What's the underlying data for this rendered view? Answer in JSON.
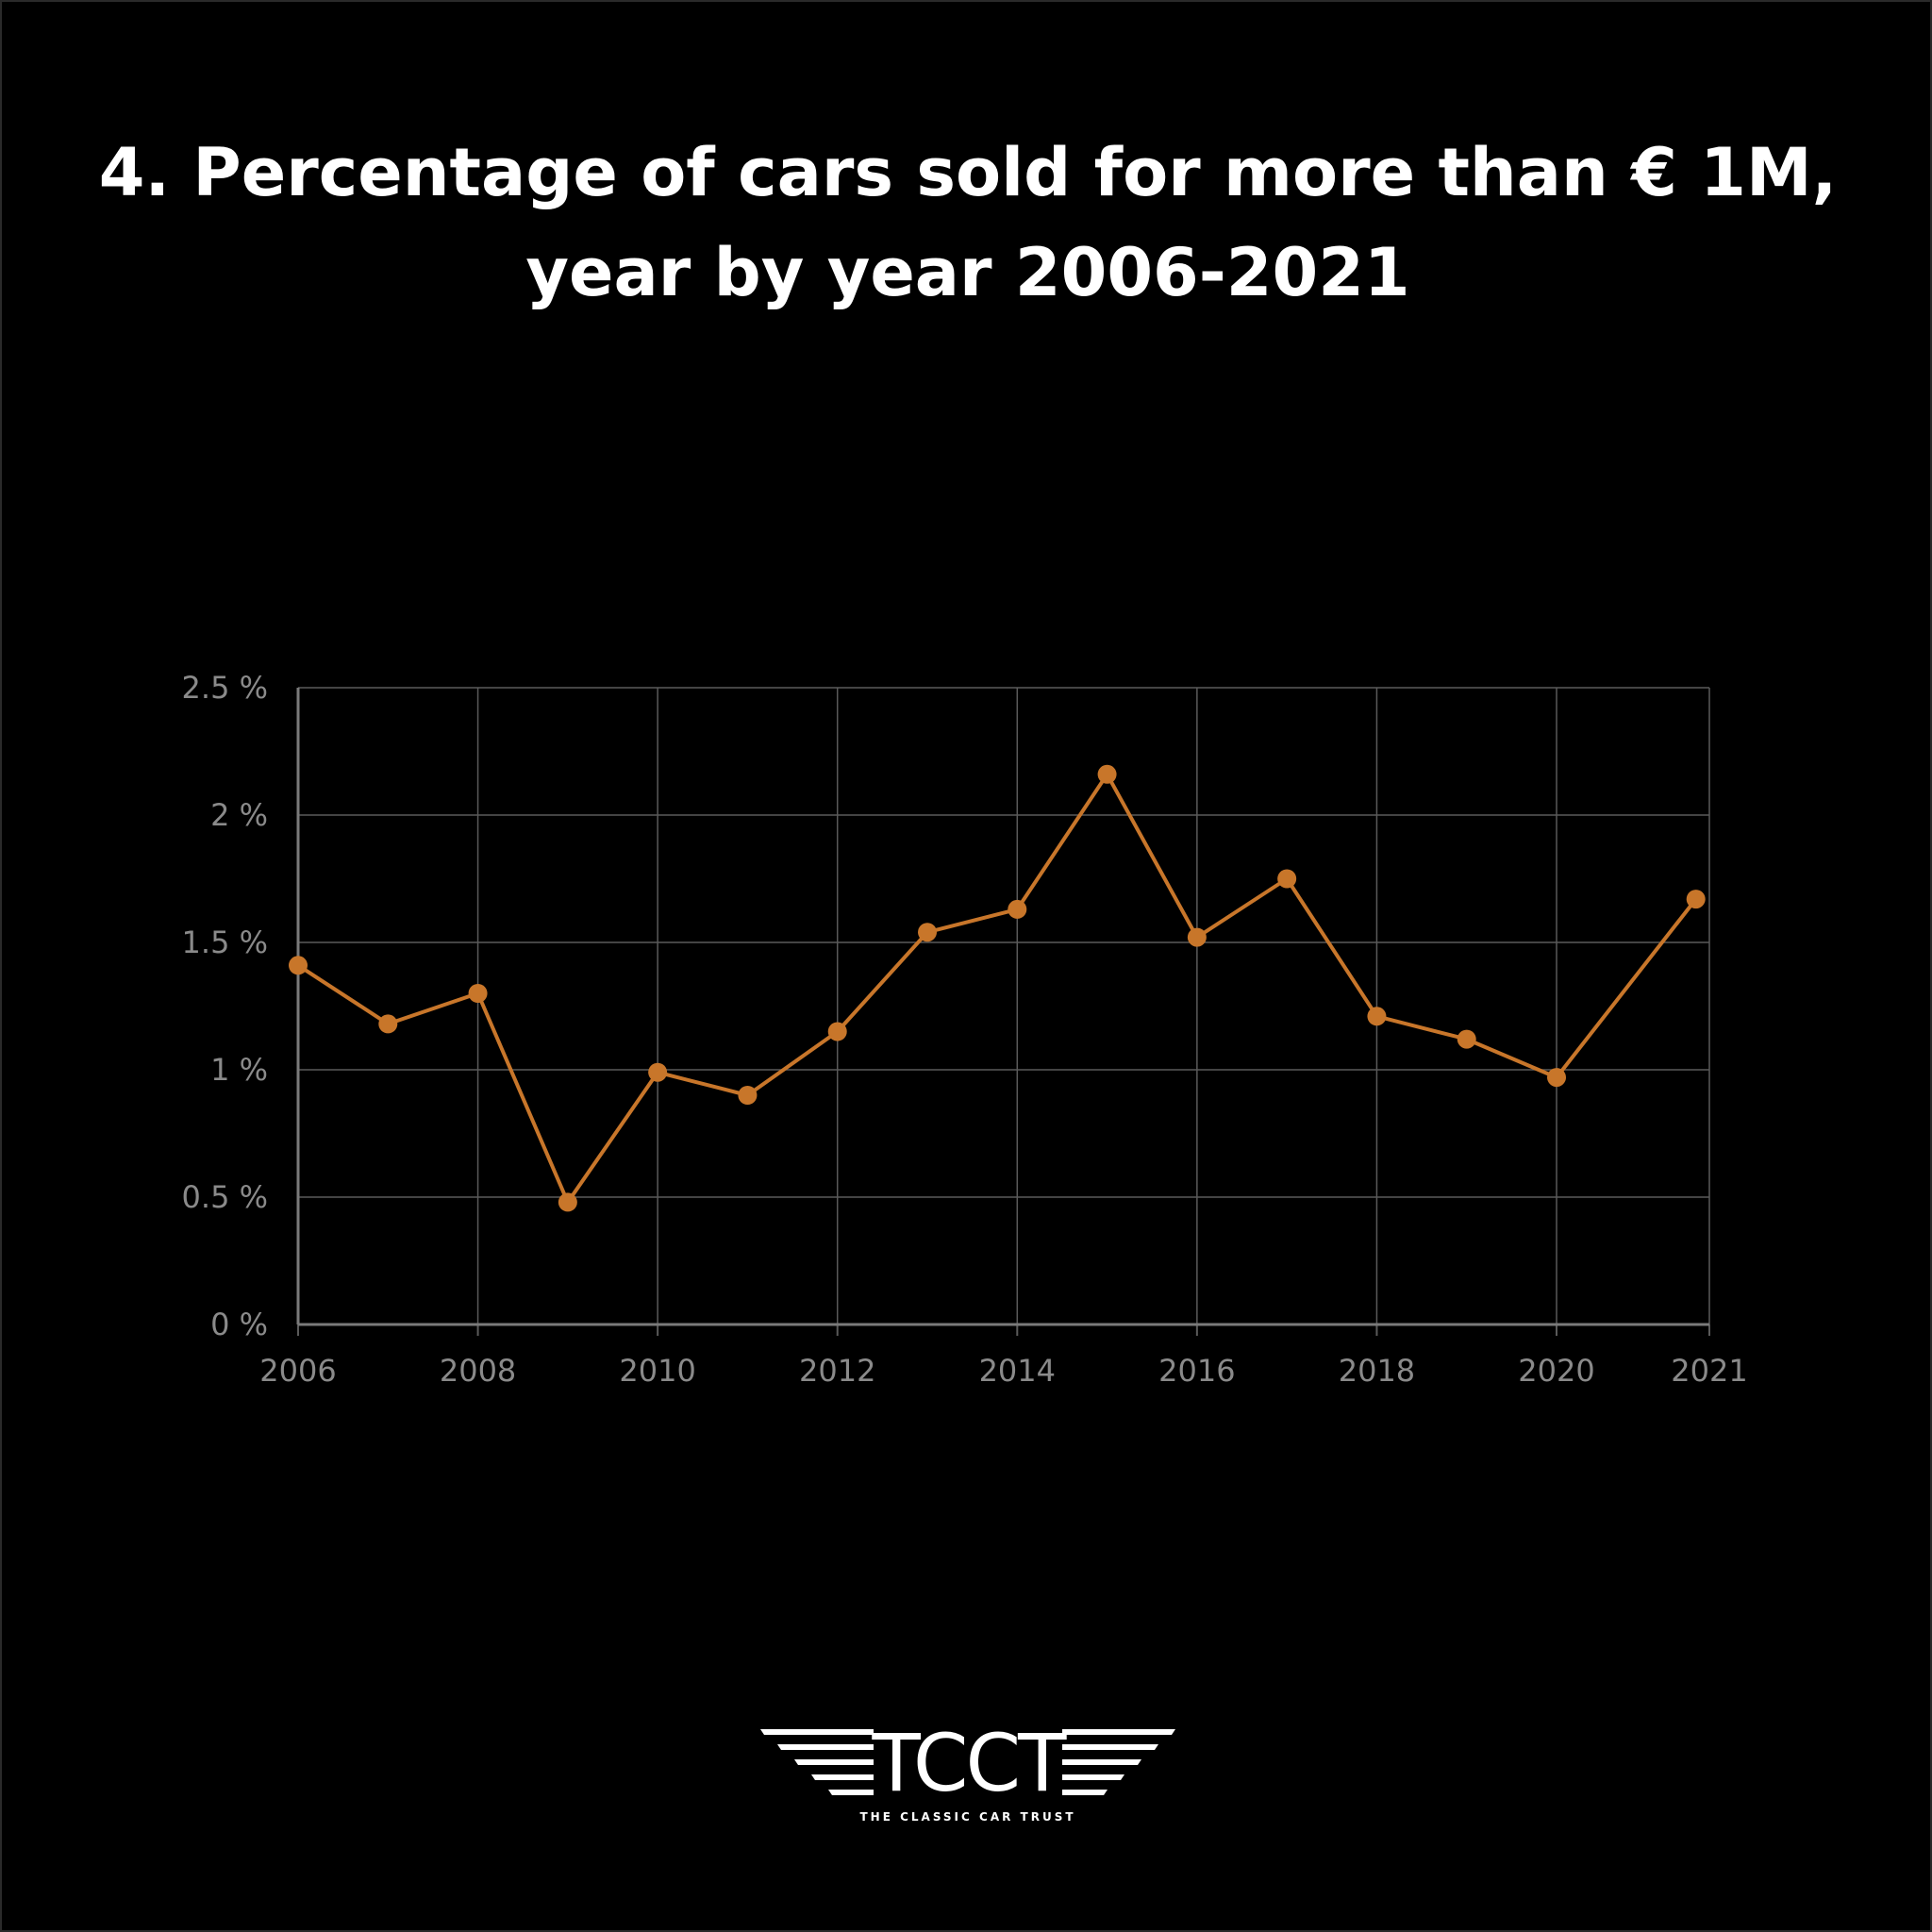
{
  "title": {
    "line1": "4. Percentage of cars sold for more than € 1M,",
    "line2": "year by year 2006-2021"
  },
  "chart_data": {
    "type": "line",
    "title": "4. Percentage of cars sold for more than € 1M, year by year 2006-2021",
    "xlabel": "",
    "ylabel": "",
    "x": [
      2006,
      2007,
      2008,
      2009,
      2010,
      2011,
      2012,
      2013,
      2014,
      2015,
      2016,
      2017,
      2018,
      2019,
      2020,
      2021
    ],
    "series": [
      {
        "name": "Percentage of cars sold for more than € 1M",
        "values": [
          1.41,
          1.18,
          1.3,
          0.48,
          0.99,
          0.9,
          1.15,
          1.54,
          1.63,
          2.16,
          1.52,
          1.75,
          1.21,
          1.12,
          0.97,
          1.67
        ],
        "color": "#c8762a"
      }
    ],
    "xlim": [
      2006,
      2021.7
    ],
    "ylim": [
      0,
      2.5
    ],
    "x_ticks": [
      2006,
      2008,
      2010,
      2012,
      2014,
      2016,
      2018,
      2020,
      2021
    ],
    "x_tick_labels": [
      "2006",
      "2008",
      "2010",
      "2012",
      "2014",
      "2016",
      "2018",
      "2020",
      "2021"
    ],
    "y_ticks": [
      0,
      0.5,
      1,
      1.5,
      2,
      2.5
    ],
    "y_tick_labels": [
      "0 %",
      "0.5 %",
      "1 %",
      "1.5 %",
      "2 %",
      "2.5 %"
    ],
    "grid": true,
    "legend": "none"
  },
  "logo": {
    "mark": "TCCT",
    "tagline": "THE CLASSIC CAR TRUST"
  },
  "colors": {
    "background": "#000000",
    "line": "#c8762a",
    "grid": "#5a5a5a",
    "axis_text": "#8a8a8a",
    "title": "#ffffff"
  }
}
